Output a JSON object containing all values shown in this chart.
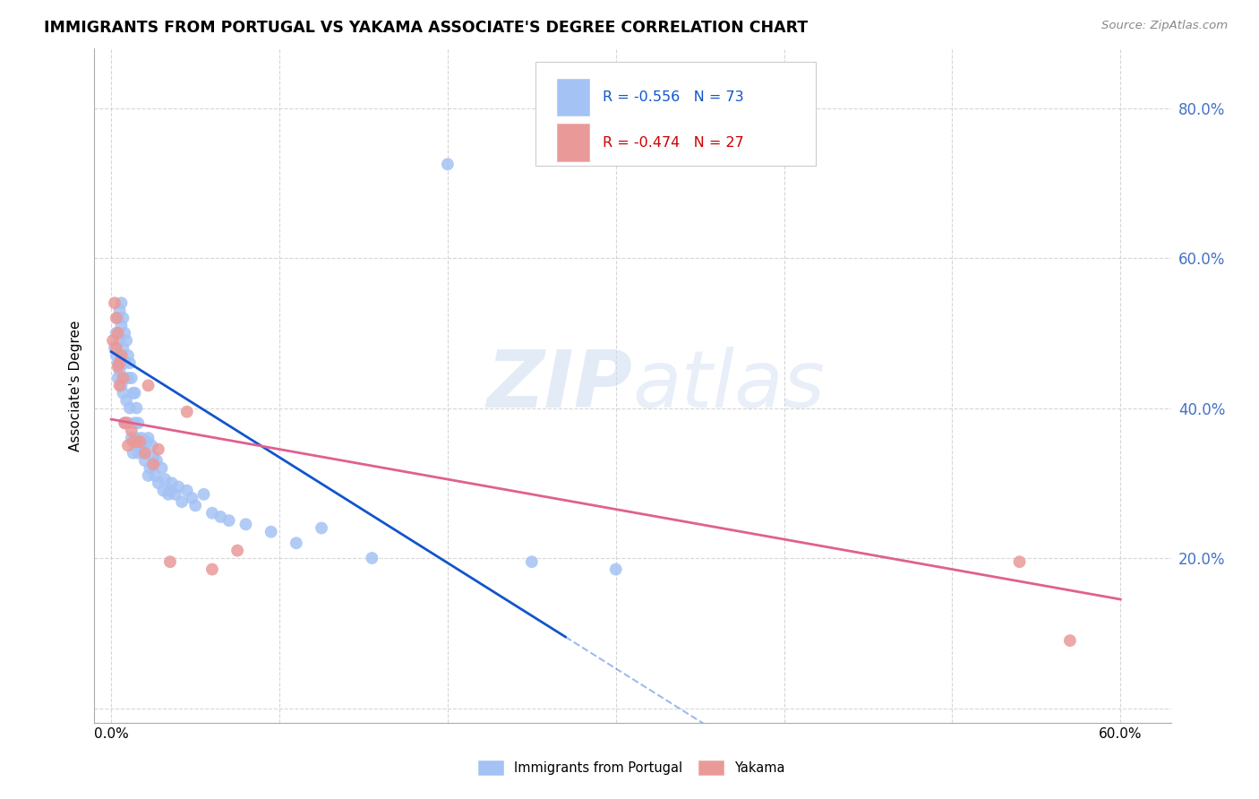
{
  "title": "IMMIGRANTS FROM PORTUGAL VS YAKAMA ASSOCIATE'S DEGREE CORRELATION CHART",
  "source": "Source: ZipAtlas.com",
  "ylabel": "Associate's Degree",
  "R1": -0.556,
  "N1": 73,
  "R2": -0.474,
  "N2": 27,
  "color_blue_fill": "#a4c2f4",
  "color_pink_fill": "#ea9999",
  "color_blue_line": "#1155cc",
  "color_pink_line": "#e06090",
  "color_right_axis": "#4472c4",
  "xlim": [
    -1.0,
    63.0
  ],
  "ylim": [
    -2.0,
    88.0
  ],
  "xticks": [
    0,
    10,
    20,
    30,
    40,
    50,
    60
  ],
  "yticks_right": [
    0,
    20,
    40,
    60,
    80
  ],
  "ytick_labels_right": [
    "",
    "20.0%",
    "40.0%",
    "60.0%",
    "80.0%"
  ],
  "blue_scatter_x": [
    0.2,
    0.3,
    0.3,
    0.4,
    0.4,
    0.4,
    0.5,
    0.5,
    0.5,
    0.6,
    0.6,
    0.6,
    0.6,
    0.7,
    0.7,
    0.7,
    0.8,
    0.8,
    0.8,
    0.9,
    0.9,
    1.0,
    1.0,
    1.0,
    1.1,
    1.1,
    1.2,
    1.2,
    1.3,
    1.3,
    1.4,
    1.4,
    1.5,
    1.5,
    1.6,
    1.6,
    1.7,
    1.8,
    1.9,
    2.0,
    2.1,
    2.2,
    2.2,
    2.3,
    2.4,
    2.5,
    2.6,
    2.7,
    2.8,
    3.0,
    3.1,
    3.2,
    3.4,
    3.5,
    3.6,
    3.8,
    4.0,
    4.2,
    4.5,
    4.8,
    5.0,
    5.5,
    6.0,
    6.5,
    7.0,
    8.0,
    9.5,
    11.0,
    12.5,
    15.5,
    20.0,
    25.0,
    30.0
  ],
  "blue_scatter_y": [
    48,
    50,
    47,
    52,
    46,
    44,
    53,
    49,
    45,
    54,
    51,
    47,
    43,
    52,
    48,
    42,
    50,
    46,
    38,
    49,
    41,
    47,
    44,
    38,
    46,
    40,
    44,
    36,
    42,
    34,
    42,
    38,
    40,
    36,
    38,
    34,
    35,
    36,
    34,
    33,
    35.5,
    36,
    31,
    32,
    35,
    33.5,
    31,
    33,
    30,
    32,
    29,
    30.5,
    28.5,
    29,
    30,
    28.5,
    29.5,
    27.5,
    29,
    28,
    27,
    28.5,
    26,
    25.5,
    25,
    24.5,
    23.5,
    22,
    24,
    20,
    72.5,
    19.5,
    18.5
  ],
  "pink_scatter_x": [
    0.1,
    0.2,
    0.3,
    0.3,
    0.4,
    0.4,
    0.5,
    0.5,
    0.6,
    0.7,
    0.8,
    0.9,
    1.0,
    1.2,
    1.3,
    1.5,
    1.7,
    2.0,
    2.2,
    2.5,
    2.8,
    3.5,
    4.5,
    6.0,
    7.5,
    54.0,
    57.0
  ],
  "pink_scatter_y": [
    49,
    54,
    52,
    48,
    50,
    45.5,
    46,
    43,
    47,
    44,
    38,
    38,
    35,
    37,
    35.5,
    35.5,
    35.5,
    34,
    43,
    32.5,
    34.5,
    19.5,
    39.5,
    18.5,
    21,
    19.5,
    9
  ],
  "blue_trend_x0": 0.0,
  "blue_trend_y0": 47.5,
  "blue_trend_x1": 27.0,
  "blue_trend_y1": 9.5,
  "blue_dash_x0": 27.0,
  "blue_dash_x1": 48.0,
  "pink_trend_x0": 0.0,
  "pink_trend_y0": 38.5,
  "pink_trend_x1": 60.0,
  "pink_trend_y1": 14.5,
  "legend_R1_color": "#1155cc",
  "legend_R2_color": "#cc0000",
  "watermark_color": "#ccdcf0"
}
